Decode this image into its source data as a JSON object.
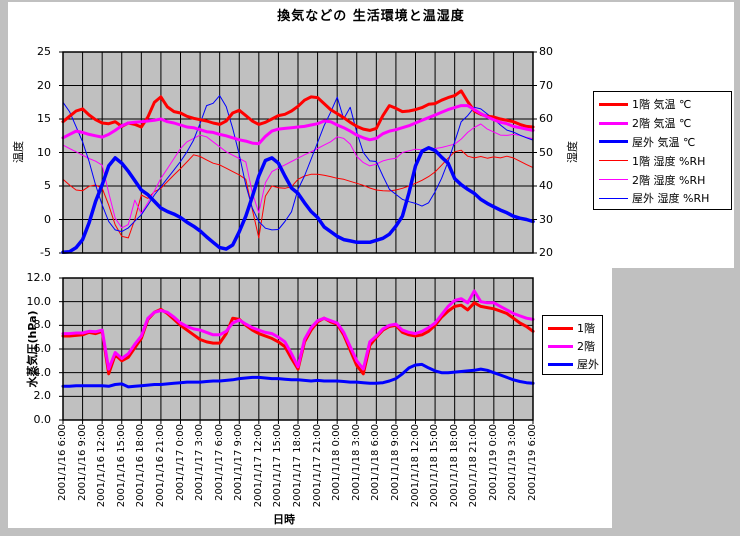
{
  "page": {
    "background_color": "#c0c0c0",
    "chart_background_color": "#ffffff",
    "plot_area_color": "#c0c0c0",
    "gridline_color": "#000000"
  },
  "chart_data": [
    {
      "type": "line",
      "title": "換気などの 生活環境と温湿度",
      "grid": "on",
      "legend_position": "right",
      "y_left": {
        "title": "温度",
        "min": -5,
        "max": 25,
        "ticks": [
          "25",
          "20",
          "15",
          "10",
          "5",
          "0",
          "-5"
        ]
      },
      "y_right": {
        "title": "湿度",
        "min": 20,
        "max": 80,
        "ticks": [
          "80",
          "70",
          "60",
          "50",
          "40",
          "30",
          "20"
        ]
      },
      "series": [
        {
          "name": "1階 気温 ℃",
          "axis": "left",
          "color": "#ff0000",
          "width": 3,
          "values": [
            14.6,
            15.4,
            16.2,
            16.5,
            15.6,
            14.9,
            14.4,
            14.3,
            14.6,
            13.9,
            14.4,
            14.2,
            13.8,
            15.3,
            17.5,
            18.3,
            16.8,
            16.1,
            15.9,
            15.4,
            15.1,
            14.9,
            14.7,
            14.4,
            14.2,
            14.7,
            15.9,
            16.3,
            15.5,
            14.7,
            14.2,
            14.5,
            15.0,
            15.5,
            15.7,
            16.2,
            16.9,
            17.8,
            18.3,
            18.2,
            17.3,
            16.4,
            15.8,
            15.2,
            14.5,
            13.9,
            13.5,
            13.3,
            13.6,
            15.5,
            17.0,
            16.6,
            16.1,
            16.2,
            16.4,
            16.7,
            17.2,
            17.3,
            17.8,
            18.2,
            18.5,
            19.2,
            17.6,
            16.2,
            15.7,
            15.4,
            15.3,
            15.0,
            14.8,
            14.6,
            14.2,
            13.9,
            13.8
          ]
        },
        {
          "name": "2階 気温 ℃",
          "axis": "left",
          "color": "#ff00ff",
          "width": 3,
          "values": [
            12.2,
            12.7,
            13.2,
            13.0,
            12.7,
            12.5,
            12.3,
            12.7,
            13.3,
            14.0,
            14.4,
            14.5,
            14.6,
            14.7,
            14.8,
            15.0,
            14.6,
            14.4,
            14.1,
            13.8,
            13.7,
            13.4,
            13.1,
            13.0,
            12.7,
            12.5,
            12.2,
            11.9,
            11.7,
            11.4,
            11.3,
            12.4,
            13.2,
            13.5,
            13.6,
            13.7,
            13.8,
            13.9,
            14.1,
            14.3,
            14.7,
            14.6,
            14.1,
            13.7,
            13.2,
            12.6,
            12.2,
            11.9,
            12.1,
            12.8,
            13.2,
            13.4,
            13.7,
            14.0,
            14.4,
            14.8,
            15.2,
            15.6,
            16.0,
            16.4,
            16.7,
            17.0,
            17.0,
            16.4,
            15.8,
            15.3,
            14.9,
            14.5,
            14.3,
            13.9,
            13.7,
            13.5,
            13.3
          ]
        },
        {
          "name": "屋外 気温 ℃",
          "axis": "left",
          "color": "#0000ff",
          "width": 3.5,
          "values": [
            -4.9,
            -4.8,
            -4.2,
            -3.0,
            -0.5,
            2.7,
            5.2,
            8.0,
            9.2,
            8.4,
            7.2,
            5.8,
            4.4,
            3.7,
            2.7,
            1.7,
            1.2,
            0.8,
            0.3,
            -0.4,
            -1.0,
            -1.7,
            -2.6,
            -3.4,
            -4.2,
            -4.4,
            -3.8,
            -1.8,
            0.5,
            3.4,
            6.5,
            8.8,
            9.2,
            8.4,
            6.5,
            4.7,
            3.9,
            2.5,
            1.2,
            0.3,
            -1.1,
            -1.8,
            -2.5,
            -3.0,
            -3.2,
            -3.4,
            -3.4,
            -3.4,
            -3.1,
            -2.8,
            -2.2,
            -1.0,
            0.5,
            4.0,
            8.0,
            10.2,
            10.7,
            10.3,
            9.3,
            8.4,
            6.1,
            5.2,
            4.5,
            3.9,
            3.0,
            2.4,
            1.9,
            1.4,
            1.0,
            0.5,
            0.2,
            0.0,
            -0.3
          ]
        },
        {
          "name": "1階 湿度 %RH",
          "axis": "right",
          "color": "#ff0000",
          "width": 1,
          "values": [
            42,
            40.3,
            38.8,
            38.6,
            39.9,
            40.3,
            39.3,
            34.3,
            28.4,
            25,
            24.5,
            30,
            37.3,
            36.3,
            38.3,
            39.3,
            41.3,
            43.3,
            45.2,
            47.2,
            49.3,
            48.8,
            47.8,
            46.8,
            46.3,
            45.3,
            44.3,
            43.3,
            42,
            33,
            24.5,
            37,
            40,
            39.5,
            39.3,
            39.8,
            42,
            43,
            43.5,
            43.5,
            43.2,
            42.8,
            42.3,
            42,
            41.4,
            40.8,
            40.2,
            39.4,
            38.8,
            38.6,
            38.5,
            38.8,
            39.3,
            40,
            40.8,
            41.7,
            42.8,
            44.2,
            46.2,
            48.3,
            50.2,
            50.7,
            48.9,
            48.4,
            48.8,
            48.3,
            48.7,
            48.4,
            48.9,
            48.4,
            47.4,
            46.4,
            45.5
          ]
        },
        {
          "name": "2階 湿度 %RH",
          "axis": "right",
          "color": "#ff00ff",
          "width": 1,
          "values": [
            52.2,
            51.2,
            50.2,
            49.2,
            48.2,
            47.4,
            46.2,
            38,
            30.4,
            27.5,
            28.5,
            35.8,
            31.8,
            35,
            38.5,
            42.3,
            45.2,
            48.2,
            51.2,
            53.2,
            54.2,
            55.2,
            54.7,
            53.2,
            51.7,
            50.2,
            49.2,
            48.2,
            47.2,
            38,
            32,
            41,
            44.3,
            45.3,
            46.3,
            47.3,
            48.3,
            49.3,
            50.2,
            51.2,
            52.2,
            53.2,
            54.7,
            54.2,
            52.5,
            48.8,
            47,
            46,
            46.5,
            47.5,
            48,
            48.3,
            50,
            50.5,
            51,
            50.8,
            51,
            51.2,
            51.5,
            52,
            52.5,
            54,
            56,
            57.5,
            58.5,
            57,
            56.1,
            55.2,
            55.1,
            55.4,
            55.1,
            54.5,
            54.1
          ]
        },
        {
          "name": "屋外 湿度 %RH",
          "axis": "right",
          "color": "#0000ff",
          "width": 1,
          "values": [
            65,
            62.2,
            57.7,
            53.2,
            47.3,
            40.3,
            34.3,
            29.4,
            26.9,
            26.4,
            27.5,
            29.5,
            31.4,
            34.3,
            37.3,
            39.8,
            42.3,
            44.8,
            47.3,
            50.2,
            53.7,
            58.7,
            64,
            64.7,
            67,
            63.7,
            57.2,
            49.3,
            40.3,
            33.4,
            29.4,
            27.4,
            26.9,
            27,
            29.4,
            32.3,
            39,
            43,
            48,
            53,
            58,
            62,
            66.5,
            60,
            63.5,
            56,
            50,
            47.5,
            47.3,
            43,
            39,
            37.5,
            36,
            35.3,
            34.8,
            34,
            35,
            38.3,
            42.3,
            47.3,
            53.2,
            59.2,
            61,
            63.5,
            63,
            61.5,
            60,
            58.2,
            56.7,
            56.1,
            55.2,
            54.4,
            53.7
          ]
        }
      ]
    },
    {
      "type": "line",
      "grid": "on",
      "legend_position": "right",
      "x_label": "日時",
      "x_tick_labels": [
        "2001/1/16 6:00",
        "2001/1/16 9:00",
        "2001/1/16 12:00",
        "2001/1/16 15:00",
        "2001/1/16 18:00",
        "2001/1/16 21:00",
        "2001/1/17 0:00",
        "2001/1/17 3:00",
        "2001/1/17 6:00",
        "2001/1/17 9:00",
        "2001/1/17 12:00",
        "2001/1/17 15:00",
        "2001/1/17 18:00",
        "2001/1/17 21:00",
        "2001/1/18 0:00",
        "2001/1/18 3:00",
        "2001/1/18 6:00",
        "2001/1/18 9:00",
        "2001/1/18 12:00",
        "2001/1/18 15:00",
        "2001/1/18 18:00",
        "2001/1/18 21:00",
        "2001/1/19 0:00",
        "2001/1/19 3:00",
        "2001/1/19 6:00"
      ],
      "y_left": {
        "title": "水蒸気圧(hPa)",
        "min": 0,
        "max": 12,
        "ticks": [
          "12.0",
          "10.0",
          "8.0",
          "6.0",
          "4.0",
          "2.0",
          "0.0"
        ]
      },
      "series": [
        {
          "name": "1階",
          "axis": "left",
          "color": "#ff0000",
          "width": 3,
          "values": [
            7.1,
            7.1,
            7.15,
            7.2,
            7.4,
            7.3,
            7.5,
            3.9,
            5.5,
            5.0,
            5.3,
            6.1,
            6.9,
            8.5,
            9.1,
            9.35,
            9.0,
            8.5,
            8.0,
            7.6,
            7.2,
            6.8,
            6.6,
            6.5,
            6.5,
            7.3,
            8.6,
            8.5,
            8.0,
            7.6,
            7.3,
            7.1,
            6.9,
            6.6,
            6.2,
            5.2,
            4.3,
            6.6,
            7.6,
            8.3,
            8.6,
            8.3,
            8.1,
            7.2,
            5.9,
            4.6,
            3.9,
            6.3,
            7.0,
            7.6,
            7.9,
            8.0,
            7.4,
            7.2,
            7.1,
            7.2,
            7.5,
            8.0,
            8.7,
            9.2,
            9.6,
            9.7,
            9.3,
            9.9,
            9.6,
            9.5,
            9.4,
            9.2,
            9.0,
            8.6,
            8.2,
            7.9,
            7.5
          ]
        },
        {
          "name": "2階",
          "axis": "left",
          "color": "#ff00ff",
          "width": 3,
          "values": [
            7.3,
            7.3,
            7.35,
            7.35,
            7.5,
            7.45,
            7.6,
            4.3,
            5.7,
            5.2,
            5.6,
            6.4,
            7.1,
            8.6,
            9.1,
            9.25,
            9.1,
            8.7,
            8.2,
            7.9,
            7.7,
            7.6,
            7.4,
            7.2,
            7.2,
            7.5,
            8.2,
            8.45,
            8.1,
            7.8,
            7.6,
            7.4,
            7.3,
            7.0,
            6.6,
            5.6,
            4.5,
            6.8,
            7.8,
            8.4,
            8.6,
            8.4,
            8.2,
            7.4,
            6.2,
            5.0,
            4.3,
            6.6,
            7.1,
            7.7,
            8.0,
            8.1,
            7.6,
            7.4,
            7.3,
            7.5,
            7.8,
            8.2,
            8.9,
            9.6,
            10.1,
            10.25,
            9.9,
            10.9,
            10.0,
            9.9,
            9.9,
            9.6,
            9.3,
            9.0,
            8.8,
            8.6,
            8.5
          ]
        },
        {
          "name": "屋外",
          "axis": "left",
          "color": "#0000ff",
          "width": 3,
          "values": [
            2.85,
            2.85,
            2.9,
            2.9,
            2.9,
            2.9,
            2.9,
            2.85,
            3.0,
            3.05,
            2.8,
            2.85,
            2.9,
            2.95,
            3.0,
            3.0,
            3.05,
            3.1,
            3.15,
            3.2,
            3.2,
            3.2,
            3.25,
            3.3,
            3.3,
            3.35,
            3.4,
            3.5,
            3.55,
            3.6,
            3.6,
            3.55,
            3.5,
            3.5,
            3.45,
            3.4,
            3.4,
            3.35,
            3.3,
            3.35,
            3.3,
            3.3,
            3.3,
            3.25,
            3.2,
            3.2,
            3.15,
            3.1,
            3.1,
            3.15,
            3.3,
            3.5,
            3.9,
            4.4,
            4.65,
            4.7,
            4.4,
            4.15,
            4.0,
            4.0,
            4.05,
            4.1,
            4.15,
            4.2,
            4.3,
            4.2,
            4.0,
            3.8,
            3.6,
            3.4,
            3.25,
            3.15,
            3.1
          ]
        }
      ]
    }
  ]
}
